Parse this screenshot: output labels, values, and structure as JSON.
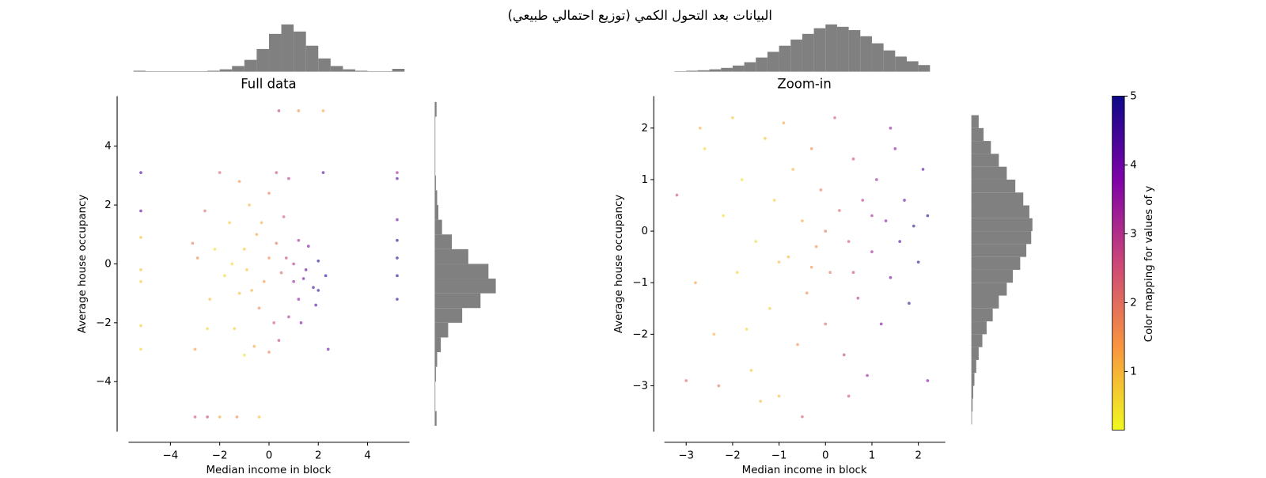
{
  "chart_data": {
    "type": "scatter",
    "title": "البيانات بعد التحول الكمي (توزيع احتمالي طبيعي)",
    "colormap": [
      "#f0f921",
      "#f89540",
      "#cc4778",
      "#7e03a8",
      "#0d0887"
    ],
    "hist_color": "#808080",
    "colorbar": {
      "label": "Color mapping for values of y",
      "clim": [
        0.15,
        5
      ],
      "ticks": [
        1,
        2,
        3,
        4,
        5
      ]
    },
    "panels": [
      {
        "title": "Full data",
        "xlabel": "Median income in block",
        "ylabel": "Average house occupancy",
        "xlim": [
          -5.7,
          5.7
        ],
        "ylim": [
          -5.7,
          5.7
        ],
        "xticks": [
          {
            "value": -4,
            "label": "−4"
          },
          {
            "value": -2,
            "label": "−2"
          },
          0,
          2,
          4
        ],
        "yticks": [
          {
            "value": -4,
            "label": "−4"
          },
          {
            "value": -2,
            "label": "−2"
          },
          0,
          2,
          4
        ],
        "x": [
          -1.0,
          -0.5,
          0,
          0.5,
          1.0,
          1.5,
          2.0,
          1.8,
          1.2,
          0.8,
          0.2,
          -0.4,
          -1.2,
          -1.8,
          -2.2,
          -1.6,
          -0.8,
          0,
          0.6,
          1.2,
          -0.2,
          -0.9,
          0.3,
          1.6,
          2.3,
          1.9,
          0.4,
          -0.6,
          -1.4,
          -2.4,
          -2.9,
          -2.6,
          -1.2,
          0.8,
          -2.0,
          0.3,
          1.0,
          -1.5,
          -0.3,
          0.7,
          -0.7,
          1.4,
          2.0,
          -3.0,
          -2.5,
          1.3,
          2.4,
          2.2,
          -1.0,
          0.0,
          5.2,
          5.2,
          5.2,
          5.2,
          5.2,
          5.2,
          5.2,
          -5.2,
          -5.2,
          -5.2,
          -5.2,
          -5.2,
          -5.2,
          -5.2,
          -3.0,
          -2.5,
          -2.0,
          -1.3,
          -0.4,
          0.4,
          1.2,
          2.2,
          -3.1
        ],
        "y": [
          0.5,
          1.0,
          0.2,
          -0.3,
          0,
          -0.2,
          0.1,
          -0.8,
          -1.2,
          -1.8,
          -2.0,
          -1.5,
          -1.0,
          -0.4,
          0.5,
          1.4,
          2.0,
          2.4,
          1.6,
          0.8,
          -0.6,
          -0.2,
          0.7,
          0.6,
          -0.4,
          -1.4,
          -2.6,
          -2.8,
          -2.2,
          -1.2,
          0.2,
          1.8,
          2.8,
          2.9,
          3.1,
          3.1,
          -0.6,
          0.0,
          1.4,
          0.2,
          -0.9,
          -0.5,
          -0.9,
          -2.9,
          -2.2,
          -2.0,
          -2.9,
          3.1,
          -3.1,
          -3.0,
          0.8,
          0.2,
          -0.4,
          1.5,
          -1.2,
          3.1,
          2.9,
          3.1,
          1.8,
          0.9,
          -0.2,
          -0.6,
          -2.1,
          -2.9,
          -5.2,
          -5.2,
          -5.2,
          -5.2,
          -5.2,
          5.2,
          5.2,
          5.2,
          0.7
        ],
        "c": [
          0.8,
          1.2,
          1.5,
          2.2,
          3.0,
          4.2,
          4.8,
          4.5,
          3.6,
          3.0,
          2.4,
          1.6,
          0.9,
          0.6,
          0.5,
          0.7,
          1.0,
          1.8,
          2.4,
          3.2,
          1.4,
          0.8,
          1.9,
          3.9,
          4.9,
          4.4,
          2.8,
          1.2,
          0.7,
          0.9,
          1.6,
          2.0,
          1.5,
          2.9,
          2.2,
          2.6,
          3.4,
          0.6,
          1.1,
          2.6,
          1.1,
          4.0,
          4.7,
          1.3,
          0.6,
          3.8,
          4.1,
          4.3,
          0.5,
          1.7,
          5,
          4.8,
          5,
          4.0,
          4.6,
          3.2,
          4.3,
          4.5,
          4.2,
          0.8,
          0.9,
          0.7,
          0.7,
          0.6,
          2.4,
          2.7,
          1.2,
          1.6,
          0.9,
          2.8,
          1.5,
          1.2,
          1.8
        ],
        "hist_x": {
          "bins": [
            -5.5,
            -5,
            -4.5,
            -4,
            -3.5,
            -3,
            -2.5,
            -2,
            -1.5,
            -1,
            -0.5,
            0,
            0.5,
            1,
            1.5,
            2,
            2.5,
            3,
            3.5,
            4,
            4.5,
            5,
            5.5
          ],
          "counts": [
            2,
            1,
            1,
            1,
            1,
            1,
            2,
            5,
            12,
            25,
            48,
            80,
            100,
            85,
            55,
            28,
            12,
            5,
            2,
            1,
            1,
            6
          ]
        },
        "hist_y": {
          "bins": [
            -5.5,
            -5,
            -4.5,
            -4,
            -3.5,
            -3,
            -2.5,
            -2,
            -1.5,
            -1,
            -0.5,
            0,
            0.5,
            1,
            1.5,
            2,
            2.5,
            3,
            3.5,
            4,
            4.5,
            5,
            5.5
          ],
          "counts": [
            3,
            1,
            1,
            2,
            4,
            10,
            22,
            45,
            75,
            100,
            88,
            55,
            28,
            12,
            6,
            4,
            2,
            1,
            1,
            1,
            1,
            3
          ]
        }
      },
      {
        "title": "Zoom-in",
        "xlabel": "Median income in block",
        "ylabel": "Average house occupancy",
        "xlim": [
          -3.47,
          2.58
        ],
        "ylim": [
          -3.89,
          2.62
        ],
        "xticks": [
          {
            "value": -3,
            "label": "−3"
          },
          {
            "value": -2,
            "label": "−2"
          },
          {
            "value": -1,
            "label": "−1"
          },
          0,
          1,
          2
        ],
        "yticks": [
          {
            "value": -3,
            "label": "−3"
          },
          {
            "value": -2,
            "label": "−2"
          },
          {
            "value": -1,
            "label": "−1"
          },
          0,
          1,
          2
        ],
        "x": [
          -3.2,
          -3.0,
          -2.8,
          -2.6,
          -2.4,
          -2.2,
          -2.0,
          -1.9,
          -1.8,
          -1.6,
          -1.5,
          -1.3,
          -1.2,
          -1.1,
          -1.0,
          -0.9,
          -0.8,
          -0.7,
          -0.6,
          -0.5,
          -0.4,
          -0.3,
          -0.2,
          -0.1,
          0,
          0.1,
          0.2,
          0.3,
          0.4,
          0.5,
          0.6,
          0.7,
          0.8,
          0.9,
          1.0,
          1.1,
          1.2,
          1.3,
          1.4,
          1.5,
          1.6,
          1.7,
          1.8,
          1.9,
          2.0,
          2.1,
          2.2,
          2.2,
          -2.3,
          -1.4,
          0.5,
          -0.5,
          1.4,
          -2.7,
          -1.7,
          0.0,
          -0.3,
          0.6,
          1.0,
          -1.0
        ],
        "y": [
          0.7,
          -2.9,
          -1.0,
          1.6,
          -2.0,
          0.3,
          2.2,
          -0.8,
          1.0,
          -2.7,
          -0.2,
          1.8,
          -1.5,
          0.6,
          -3.2,
          2.1,
          -0.5,
          1.2,
          -2.2,
          0.2,
          -1.2,
          1.6,
          -0.3,
          0.8,
          -1.8,
          -0.8,
          2.2,
          0.4,
          -2.4,
          -0.2,
          1.4,
          -1.3,
          0.6,
          -2.8,
          -0.4,
          1.0,
          -1.8,
          0.2,
          -0.9,
          1.6,
          -0.2,
          0.6,
          -1.4,
          0.1,
          -0.6,
          1.2,
          0.3,
          -2.9,
          -3.0,
          -3.3,
          -3.2,
          -3.6,
          2.0,
          2.0,
          -1.9,
          0.0,
          -0.7,
          -0.8,
          0.3,
          -0.6
        ],
        "c": [
          2.5,
          2.2,
          1.3,
          0.6,
          1.1,
          0.5,
          0.8,
          0.6,
          0.5,
          0.8,
          0.6,
          0.9,
          0.7,
          0.7,
          0.9,
          1.2,
          1.0,
          1.1,
          1.5,
          1.2,
          1.6,
          1.6,
          1.5,
          1.8,
          2.2,
          2.0,
          2.4,
          2.2,
          2.8,
          2.5,
          2.6,
          3.0,
          2.9,
          3.4,
          3.3,
          3.3,
          3.8,
          3.7,
          4.0,
          3.6,
          4.3,
          4.2,
          4.6,
          4.7,
          4.9,
          4.4,
          5.0,
          3.8,
          1.9,
          1.0,
          2.6,
          2.3,
          3.5,
          1.0,
          0.6,
          1.9,
          1.5,
          2.7,
          3.2,
          0.9
        ],
        "hist_x": {
          "bins": [
            -3.25,
            -3,
            -2.75,
            -2.5,
            -2.25,
            -2,
            -1.75,
            -1.5,
            -1.25,
            -1,
            -0.75,
            -0.5,
            -0.25,
            0,
            0.25,
            0.5,
            0.75,
            1,
            1.25,
            1.5,
            1.75,
            2,
            2.25
          ],
          "counts": [
            1,
            2,
            3,
            5,
            8,
            13,
            20,
            30,
            42,
            55,
            68,
            80,
            92,
            100,
            95,
            88,
            75,
            60,
            45,
            32,
            22,
            14
          ]
        },
        "hist_y": {
          "bins": [
            -3.75,
            -3.5,
            -3.25,
            -3,
            -2.75,
            -2.5,
            -2.25,
            -2,
            -1.75,
            -1.5,
            -1.25,
            -1,
            -0.75,
            -0.5,
            -0.25,
            0,
            0.25,
            0.5,
            0.75,
            1,
            1.25,
            1.5,
            1.75,
            2,
            2.25
          ],
          "counts": [
            1,
            2,
            3,
            5,
            8,
            12,
            18,
            25,
            35,
            45,
            58,
            68,
            80,
            90,
            98,
            100,
            95,
            85,
            72,
            58,
            45,
            32,
            20,
            12
          ]
        }
      }
    ]
  }
}
